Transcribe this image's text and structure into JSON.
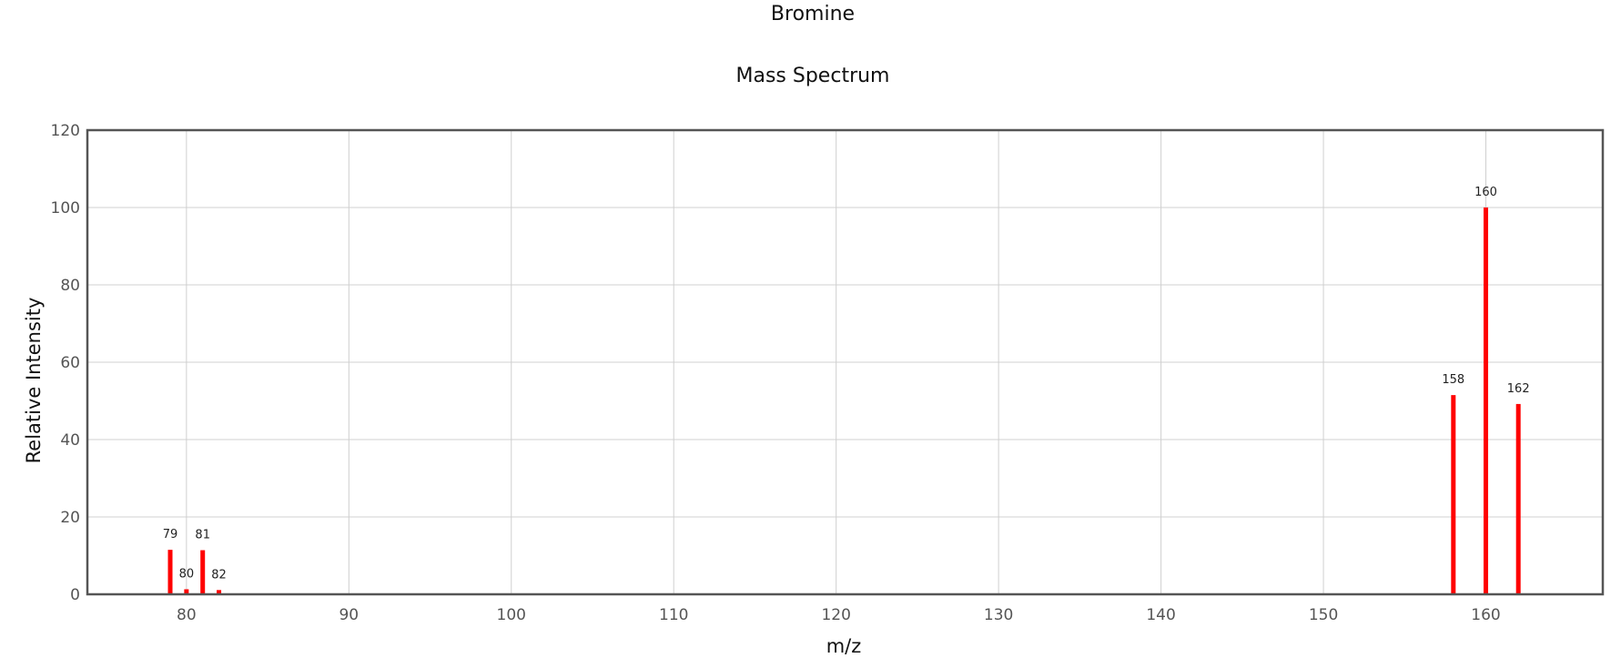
{
  "chart_data": {
    "type": "bar",
    "title": "Bromine",
    "subtitle": "Mass Spectrum",
    "xlabel": "m/z",
    "ylabel": "Relative Intensity",
    "xlim": [
      73.9,
      167.2
    ],
    "ylim": [
      0,
      120
    ],
    "xticks": [
      80,
      90,
      100,
      110,
      120,
      130,
      140,
      150,
      160
    ],
    "yticks": [
      0,
      20,
      40,
      60,
      80,
      100,
      120
    ],
    "grid": true,
    "bar_color": "#ff0000",
    "peaks": [
      {
        "mz": 79,
        "intensity": 11.5,
        "label": "79"
      },
      {
        "mz": 80,
        "intensity": 1.3,
        "label": "80"
      },
      {
        "mz": 81,
        "intensity": 11.4,
        "label": "81"
      },
      {
        "mz": 82,
        "intensity": 1.1,
        "label": "82"
      },
      {
        "mz": 158,
        "intensity": 51.5,
        "label": "158"
      },
      {
        "mz": 160,
        "intensity": 100,
        "label": "160"
      },
      {
        "mz": 162,
        "intensity": 49.2,
        "label": "162"
      }
    ]
  }
}
